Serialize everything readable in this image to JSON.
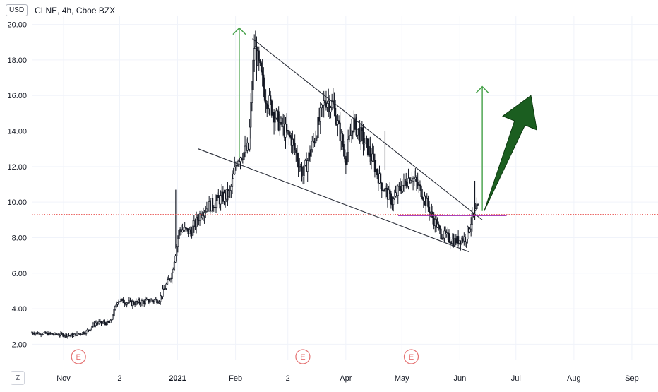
{
  "header": {
    "currency": "USD",
    "title": "CLNE, 4h, Cboe BZX"
  },
  "zoom_button": "Z",
  "colors": {
    "grid": "#f0f3fa",
    "text": "#131722",
    "candle": "#131722",
    "trendline": "#2a2e39",
    "level_line": "#9c27b0",
    "price_line": "#e53935",
    "projection": "#43a047",
    "big_arrow": "#1b5e20",
    "event": "#e57373"
  },
  "chart_data": {
    "type": "candlestick",
    "symbol": "CLNE",
    "interval": "4h",
    "exchange": "Cboe BZX",
    "y_ticks": [
      "2.00",
      "4.00",
      "6.00",
      "8.00",
      "10.00",
      "12.00",
      "14.00",
      "16.00",
      "18.00",
      "20.00"
    ],
    "ylim": [
      1.5,
      20.5
    ],
    "x_ticks": [
      "Nov",
      "2",
      "2021",
      "Feb",
      "2",
      "Apr",
      "May",
      "Jun",
      "Jul",
      "Aug",
      "Sep"
    ],
    "x_tick_dates": [
      "2020-11-01",
      "2020-12-01",
      "2021-01-01",
      "2021-02-01",
      "2021-03-01",
      "2021-04-01",
      "2021-05-01",
      "2021-06-01",
      "2021-07-01",
      "2021-08-01",
      "2021-09-01"
    ],
    "xlim": [
      "2020-10-15",
      "2021-09-15"
    ],
    "series_anchors": [
      {
        "date": "2020-10-15",
        "close": 2.65
      },
      {
        "date": "2020-10-28",
        "close": 2.55
      },
      {
        "date": "2020-11-06",
        "close": 2.5
      },
      {
        "date": "2020-11-13",
        "close": 2.7
      },
      {
        "date": "2020-11-18",
        "close": 3.2
      },
      {
        "date": "2020-11-26",
        "close": 3.2
      },
      {
        "date": "2020-11-30",
        "close": 4.5
      },
      {
        "date": "2020-12-07",
        "close": 4.3
      },
      {
        "date": "2020-12-14",
        "close": 4.4
      },
      {
        "date": "2020-12-22",
        "close": 4.5
      },
      {
        "date": "2020-12-29",
        "close": 6.0
      },
      {
        "date": "2021-01-02",
        "close": 8.5
      },
      {
        "date": "2021-01-08",
        "close": 8.3
      },
      {
        "date": "2021-01-14",
        "close": 9.5
      },
      {
        "date": "2021-01-21",
        "close": 10.0
      },
      {
        "date": "2021-01-29",
        "close": 10.5
      },
      {
        "date": "2021-02-02",
        "close": 12.5
      },
      {
        "date": "2021-02-08",
        "close": 13.0
      },
      {
        "date": "2021-02-11",
        "close": 18.8
      },
      {
        "date": "2021-02-17",
        "close": 16.0
      },
      {
        "date": "2021-02-24",
        "close": 14.5
      },
      {
        "date": "2021-03-03",
        "close": 13.5
      },
      {
        "date": "2021-03-09",
        "close": 11.5
      },
      {
        "date": "2021-03-15",
        "close": 13.5
      },
      {
        "date": "2021-03-21",
        "close": 15.8
      },
      {
        "date": "2021-03-25",
        "close": 15.5
      },
      {
        "date": "2021-04-01",
        "close": 12.5
      },
      {
        "date": "2021-04-05",
        "close": 14.5
      },
      {
        "date": "2021-04-13",
        "close": 13.0
      },
      {
        "date": "2021-04-20",
        "close": 11.0
      },
      {
        "date": "2021-04-26",
        "close": 10.0
      },
      {
        "date": "2021-04-30",
        "close": 10.8
      },
      {
        "date": "2021-05-06",
        "close": 11.5
      },
      {
        "date": "2021-05-12",
        "close": 10.5
      },
      {
        "date": "2021-05-18",
        "close": 9.0
      },
      {
        "date": "2021-05-22",
        "close": 8.2
      },
      {
        "date": "2021-05-29",
        "close": 7.8
      },
      {
        "date": "2021-06-04",
        "close": 8.0
      },
      {
        "date": "2021-06-08",
        "close": 9.2
      },
      {
        "date": "2021-06-11",
        "close": 9.7
      }
    ],
    "spikes": [
      {
        "date": "2020-12-31",
        "high": 10.7,
        "low": 7.4
      },
      {
        "date": "2021-04-22",
        "high": 14.0,
        "low": 11.8
      },
      {
        "date": "2021-06-09",
        "high": 11.2,
        "low": 9.0
      }
    ],
    "drawings": {
      "upper_trendline": [
        {
          "date": "2021-02-10",
          "value": 19.2
        },
        {
          "date": "2021-06-13",
          "value": 9.0
        }
      ],
      "lower_trendline": [
        {
          "date": "2021-01-12",
          "value": 13.0
        },
        {
          "date": "2021-06-06",
          "value": 7.2
        }
      ],
      "horizontal_level": [
        {
          "date": "2021-04-29",
          "value": 9.25
        },
        {
          "date": "2021-06-26",
          "value": 9.25
        }
      ],
      "current_price_line": 9.3,
      "projection_arrows": [
        {
          "date": "2021-02-03",
          "from": 12.5,
          "to": 19.8
        },
        {
          "date": "2021-06-13",
          "from": 9.5,
          "to": 16.5
        }
      ],
      "big_arrow": [
        {
          "date": "2021-06-14",
          "value": 9.5
        },
        {
          "date": "2021-07-09",
          "value": 16.0
        }
      ]
    },
    "events": [
      {
        "label": "E",
        "date": "2020-11-09"
      },
      {
        "label": "E",
        "date": "2021-03-09"
      },
      {
        "label": "E",
        "date": "2021-05-06"
      }
    ]
  }
}
